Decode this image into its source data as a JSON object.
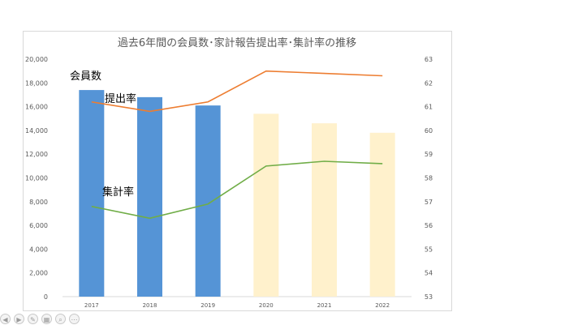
{
  "chart_data": {
    "type": "bar",
    "title": "過去6年間の会員数･家計報告提出率･集計率の推移",
    "categories": [
      "2017",
      "2018",
      "2019",
      "2020",
      "2021",
      "2022"
    ],
    "series": [
      {
        "axis": "left",
        "kind": "bar",
        "values": [
          17400,
          16800,
          16100,
          15400,
          14600,
          13800
        ],
        "colors": [
          "#5594d6",
          "#5594d6",
          "#5594d6",
          "#fff1cc",
          "#fff1cc",
          "#fff1cc"
        ]
      },
      {
        "axis": "right",
        "kind": "line",
        "values": [
          61.2,
          60.8,
          61.2,
          62.5,
          62.4,
          62.3
        ],
        "color": "#ed7d31"
      },
      {
        "axis": "right",
        "kind": "line",
        "values": [
          56.8,
          56.3,
          56.9,
          58.5,
          58.7,
          58.6
        ],
        "color": "#70ad47"
      }
    ],
    "ylim_left": [
      0,
      20000
    ],
    "ylim_right": [
      53,
      63
    ],
    "yticks_left": [
      "0",
      "2,000",
      "4,000",
      "6,000",
      "8,000",
      "10,000",
      "12,000",
      "14,000",
      "16,000",
      "18,000",
      "20,000"
    ],
    "yticks_right": [
      "53",
      "54",
      "55",
      "56",
      "57",
      "58",
      "59",
      "60",
      "61",
      "62",
      "63"
    ],
    "grid": false,
    "annotations": [
      "会員数",
      "提出率",
      "集計率"
    ]
  },
  "player_controls": [
    "prev-icon",
    "next-icon",
    "pen-icon",
    "slides-icon",
    "zoom-icon",
    "more-icon"
  ]
}
